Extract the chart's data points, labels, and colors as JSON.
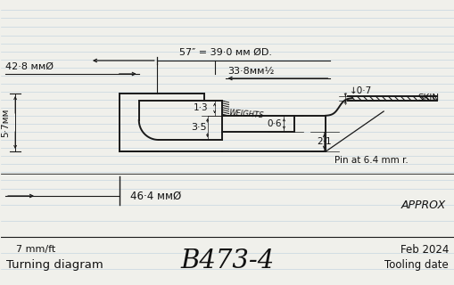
{
  "title": "B473-4",
  "subtitle_left": "Turning diagram",
  "subtitle_left2": "7 mm/ft",
  "subtitle_right": "Tooling date",
  "subtitle_right2": "Feb 2024",
  "background_color": "#f0f0eb",
  "line_color": "#1a1a1a",
  "text_color": "#111111",
  "ruled_line_color": "#c5d5e0",
  "annotations": {
    "dim1": "57″ = 39·0 мм ØD.",
    "dim2": "42·8 ммØ",
    "dim3": "33·8мм½",
    "dim4": "5·7мм",
    "dim5": "1·3",
    "dim6": "3·5",
    "dim7": "0·6",
    "dim8": "↓0·7",
    "dim9": "2·1",
    "dim10": "WEIGHTS",
    "dim11": "SKIN",
    "dim12": "Pin at 6.4 mm r.",
    "dim13": "46·4 ммØ",
    "dim14": "APPROX"
  }
}
